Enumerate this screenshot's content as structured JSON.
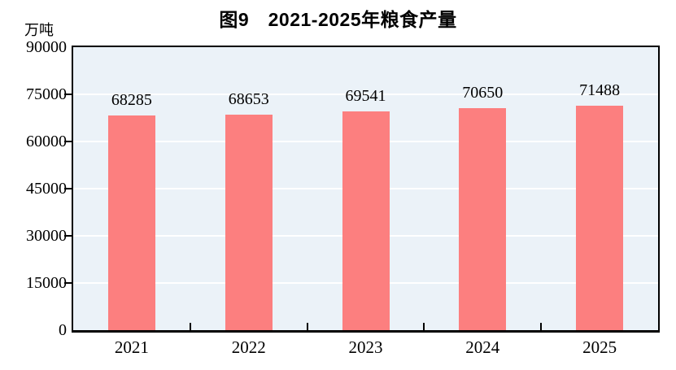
{
  "chart_data": {
    "type": "bar",
    "title": "图9　2021-2025年粮食产量",
    "ylabel": "万吨",
    "xlabel": "",
    "categories": [
      "2021",
      "2022",
      "2023",
      "2024",
      "2025"
    ],
    "values": [
      68285,
      68653,
      69541,
      70650,
      71488
    ],
    "data_labels": [
      "68285",
      "68653",
      "69541",
      "70650",
      "71488"
    ],
    "ylim": [
      0,
      90000
    ],
    "yticks": [
      0,
      15000,
      30000,
      45000,
      60000,
      75000,
      90000
    ],
    "grid": true,
    "legend_position": "none",
    "colors": {
      "bar": "#fc7f7f",
      "plot_background": "#ebf2f8",
      "gridline": "#ffffff",
      "axis": "#000000",
      "text": "#000000",
      "page_background": "#ffffff"
    }
  }
}
